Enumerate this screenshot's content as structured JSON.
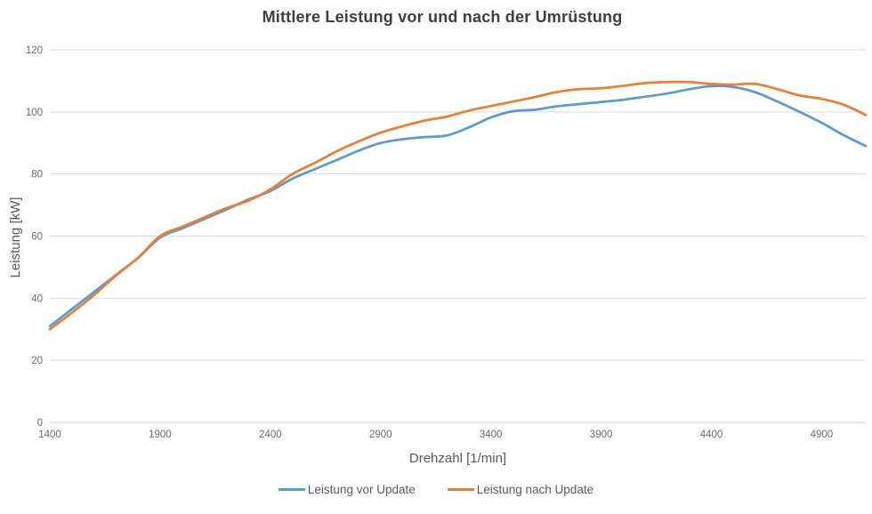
{
  "chart_data": {
    "type": "line",
    "title": "Mittlere Leistung vor und nach der Umrüstung",
    "xlabel": "Drehzahl [1/min]",
    "ylabel": "Leistung [kW]",
    "xlim": [
      1400,
      5100
    ],
    "ylim": [
      0,
      120
    ],
    "xticks": [
      1400,
      1900,
      2400,
      2900,
      3400,
      3900,
      4400,
      4900
    ],
    "yticks": [
      0,
      20,
      40,
      60,
      80,
      100,
      120
    ],
    "grid": "horizontal-only",
    "legend_position": "bottom-center",
    "x": [
      1400,
      1500,
      1600,
      1700,
      1800,
      1900,
      2000,
      2100,
      2200,
      2300,
      2400,
      2500,
      2600,
      2700,
      2800,
      2900,
      3000,
      3100,
      3200,
      3300,
      3400,
      3500,
      3600,
      3700,
      3800,
      3900,
      4000,
      4100,
      4200,
      4300,
      4400,
      4500,
      4600,
      4700,
      4800,
      4900,
      5000,
      5100
    ],
    "series": [
      {
        "name": "Leistung vor Update",
        "color": "#5B9BD5",
        "values": [
          31,
          36.5,
          42,
          47.5,
          53,
          59.5,
          62.5,
          65.5,
          68.5,
          71.8,
          74.5,
          78.5,
          81.5,
          84.5,
          87.5,
          90,
          91.2,
          91.9,
          92.4,
          95,
          98.2,
          100.2,
          100.7,
          101.8,
          102.5,
          103.2,
          103.9,
          104.9,
          105.9,
          107.3,
          108.3,
          108,
          106.3,
          103.3,
          100,
          96.5,
          92.5,
          89
        ]
      },
      {
        "name": "Leistung nach Update",
        "color": "#ED7D31",
        "values": [
          30,
          35.3,
          41,
          47.3,
          53,
          60,
          63,
          66,
          69,
          71.4,
          75,
          80,
          83.5,
          87.3,
          90.5,
          93.3,
          95.4,
          97.2,
          98.5,
          100.4,
          101.9,
          103.3,
          104.8,
          106.4,
          107.3,
          107.6,
          108.4,
          109.3,
          109.6,
          109.6,
          109,
          108.8,
          109,
          107.3,
          105.3,
          104.2,
          102.3,
          99
        ]
      }
    ]
  },
  "colors": {
    "title_text": "#3f3f3f",
    "axis_text": "#595959",
    "tick_text": "#6a6a6a",
    "gridline": "#D9D9D9",
    "axis_line": "#C9C9C9",
    "background": "#FFFFFF"
  }
}
